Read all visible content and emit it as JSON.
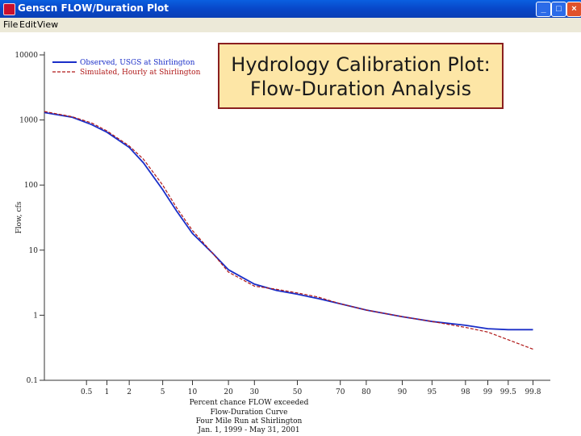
{
  "window": {
    "title": "Genscn FLOW/Duration Plot",
    "min_label": "_",
    "max_label": "□",
    "close_label": "×",
    "menus": [
      "File",
      "Edit",
      "View"
    ]
  },
  "banner": {
    "line1": "Hydrology Calibration Plot:",
    "line2": "Flow-Duration Analysis"
  },
  "chart_data": {
    "type": "line",
    "y_scale": "log",
    "x_scale": "probability",
    "ylim": [
      0.1,
      10000
    ],
    "xlim": [
      0.1,
      99.9
    ],
    "y_ticks": [
      {
        "v": 10000,
        "label": "10000"
      },
      {
        "v": 1000,
        "label": "1000"
      },
      {
        "v": 100,
        "label": "100"
      },
      {
        "v": 10,
        "label": "10"
      },
      {
        "v": 1,
        "label": "1"
      },
      {
        "v": 0.1,
        "label": "0.1"
      }
    ],
    "x_ticks": [
      {
        "v": 0.5,
        "label": "0.5"
      },
      {
        "v": 1,
        "label": "1"
      },
      {
        "v": 2,
        "label": "2"
      },
      {
        "v": 5,
        "label": "5"
      },
      {
        "v": 10,
        "label": "10"
      },
      {
        "v": 20,
        "label": "20"
      },
      {
        "v": 30,
        "label": "30"
      },
      {
        "v": 50,
        "label": "50"
      },
      {
        "v": 70,
        "label": "70"
      },
      {
        "v": 80,
        "label": "80"
      },
      {
        "v": 90,
        "label": "90"
      },
      {
        "v": 95,
        "label": "95"
      },
      {
        "v": 98,
        "label": "98"
      },
      {
        "v": 99,
        "label": "99"
      },
      {
        "v": 99.5,
        "label": "99.5"
      },
      {
        "v": 99.8,
        "label": "99.8"
      }
    ],
    "ylabel": "Flow, cfs",
    "xlabel": "Percent chance FLOW exceeded",
    "caption": [
      "Flow-Duration Curve",
      "Four Mile Run at Shirlington",
      "Jan. 1, 1999 - May 31, 2001"
    ],
    "legend_position": "top-left",
    "series": [
      {
        "name": "Observed, USGS at Shirlington",
        "color": "#1a2ec8",
        "style": "solid",
        "points": [
          [
            0.1,
            1300
          ],
          [
            0.3,
            1100
          ],
          [
            0.6,
            850
          ],
          [
            1,
            650
          ],
          [
            2,
            380
          ],
          [
            3,
            220
          ],
          [
            5,
            85
          ],
          [
            7,
            40
          ],
          [
            10,
            18
          ],
          [
            15,
            9
          ],
          [
            20,
            5
          ],
          [
            30,
            3
          ],
          [
            40,
            2.4
          ],
          [
            50,
            2.1
          ],
          [
            60,
            1.8
          ],
          [
            70,
            1.5
          ],
          [
            80,
            1.2
          ],
          [
            90,
            0.95
          ],
          [
            95,
            0.8
          ],
          [
            98,
            0.7
          ],
          [
            99,
            0.62
          ],
          [
            99.5,
            0.6
          ],
          [
            99.8,
            0.6
          ]
        ]
      },
      {
        "name": "Simulated, Hourly at Shirlington",
        "color": "#b01818",
        "style": "dashed",
        "points": [
          [
            0.1,
            1350
          ],
          [
            0.3,
            1120
          ],
          [
            0.6,
            900
          ],
          [
            1,
            680
          ],
          [
            2,
            400
          ],
          [
            3,
            250
          ],
          [
            5,
            100
          ],
          [
            7,
            45
          ],
          [
            10,
            20
          ],
          [
            15,
            9
          ],
          [
            20,
            4.6
          ],
          [
            30,
            2.8
          ],
          [
            40,
            2.5
          ],
          [
            50,
            2.2
          ],
          [
            60,
            1.9
          ],
          [
            70,
            1.5
          ],
          [
            80,
            1.2
          ],
          [
            90,
            0.95
          ],
          [
            95,
            0.8
          ],
          [
            98,
            0.65
          ],
          [
            99,
            0.55
          ],
          [
            99.5,
            0.42
          ],
          [
            99.8,
            0.3
          ]
        ]
      }
    ]
  }
}
